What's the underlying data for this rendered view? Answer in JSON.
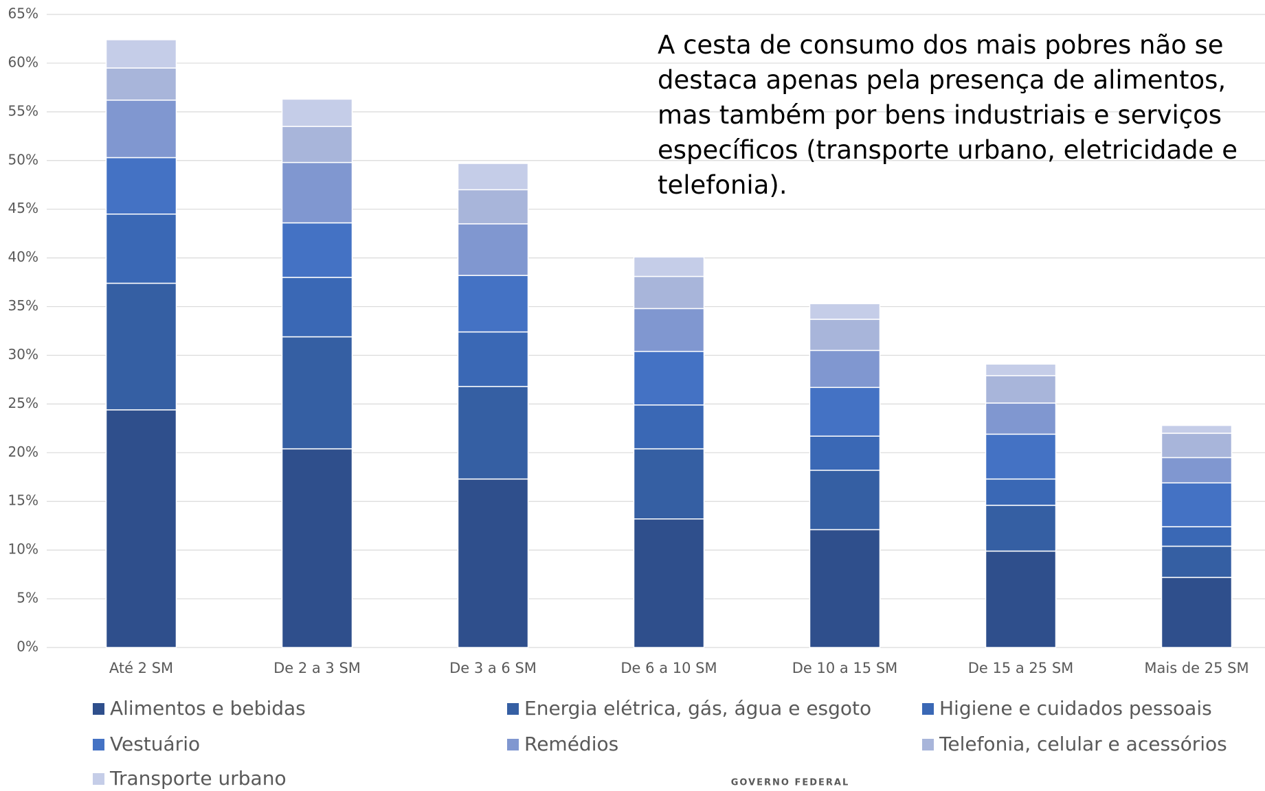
{
  "chart_data": {
    "type": "stacked_bar",
    "annotation": "A cesta de consumo dos mais pobres não se destaca apenas pela presença de alimentos, mas também por bens industriais e serviços específicos (transporte urbano, eletricidade e telefonia).",
    "footer": "GOVERNO FEDERAL",
    "categories": [
      "Até 2 SM",
      "De 2 a 3 SM",
      "De 3 a 6 SM",
      "De 6 a 10 SM",
      "De 10 a 15 SM",
      "De 15 a 25 SM",
      "Mais de 25 SM"
    ],
    "series": [
      {
        "name": "Alimentos e bebidas",
        "color": "#2f4f8c",
        "values": [
          24.4,
          20.4,
          17.3,
          13.2,
          12.1,
          9.9,
          7.2
        ]
      },
      {
        "name": "Energia elétrica, gás, água e esgoto",
        "color": "#355fa3",
        "values": [
          13.0,
          11.5,
          9.5,
          7.2,
          6.1,
          4.7,
          3.2
        ]
      },
      {
        "name": "Higiene e cuidados pessoais",
        "color": "#3a68b5",
        "values": [
          7.1,
          6.1,
          5.6,
          4.5,
          3.5,
          2.7,
          2.0
        ]
      },
      {
        "name": "Vestuário",
        "color": "#4472c4",
        "values": [
          5.8,
          5.6,
          5.8,
          5.5,
          5.0,
          4.6,
          4.5
        ]
      },
      {
        "name": "Remédios",
        "color": "#8097d0",
        "values": [
          5.9,
          6.2,
          5.3,
          4.4,
          3.8,
          3.2,
          2.6
        ]
      },
      {
        "name": "Telefonia, celular e acessórios",
        "color": "#a8b5da",
        "values": [
          3.3,
          3.7,
          3.5,
          3.3,
          3.2,
          2.8,
          2.5
        ]
      },
      {
        "name": "Transporte urbano",
        "color": "#c5cde8",
        "values": [
          2.9,
          2.8,
          2.7,
          2.0,
          1.6,
          1.2,
          0.8
        ]
      }
    ],
    "ylim": [
      0,
      65
    ],
    "yticks": [
      {
        "value": 0,
        "label": "0%"
      },
      {
        "value": 5,
        "label": "5%"
      },
      {
        "value": 10,
        "label": "10%"
      },
      {
        "value": 15,
        "label": "15%"
      },
      {
        "value": 20,
        "label": "20%"
      },
      {
        "value": 25,
        "label": "25%"
      },
      {
        "value": 30,
        "label": "30%"
      },
      {
        "value": 35,
        "label": "35%"
      },
      {
        "value": 40,
        "label": "40%"
      },
      {
        "value": 45,
        "label": "45%"
      },
      {
        "value": 50,
        "label": "50%"
      },
      {
        "value": 55,
        "label": "55%"
      },
      {
        "value": 60,
        "label": "60%"
      },
      {
        "value": 65,
        "label": "65%"
      }
    ],
    "grid": true,
    "legend": "bottom"
  }
}
